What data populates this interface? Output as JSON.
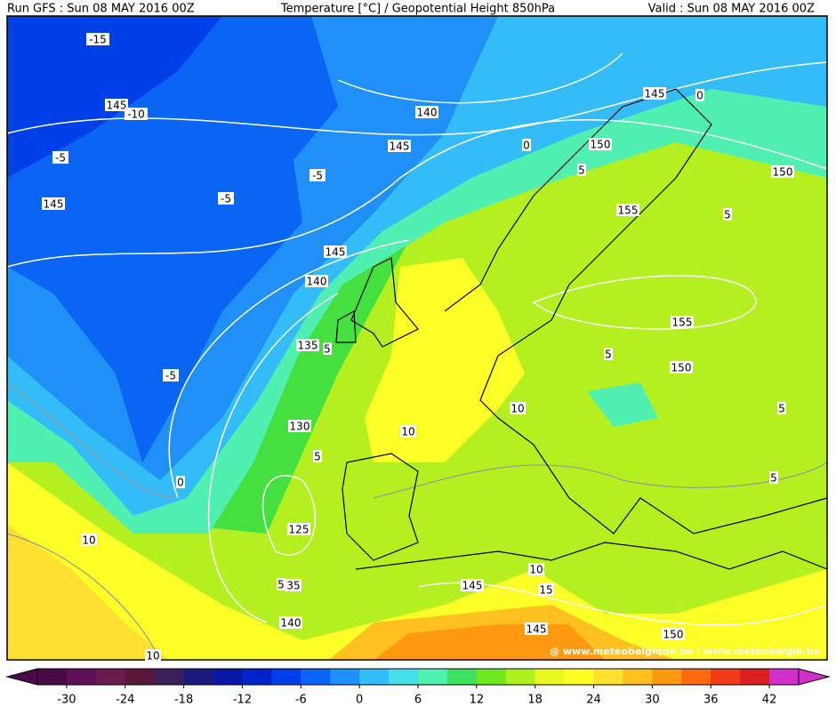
{
  "header": {
    "run": "Run GFS : Sun 08 MAY 2016 00Z",
    "title": "Temperature [°C] / Geopotential Height 850hPa",
    "valid": "Valid : Sun 08 MAY 2016 00Z"
  },
  "map": {
    "contour_labels": [
      "-15",
      "145",
      "-10",
      "-5",
      "145",
      "140",
      "145",
      "-5",
      "-5",
      "0",
      "150",
      "145",
      "0",
      "150",
      "5",
      "155",
      "5",
      "145",
      "140",
      "155",
      "135",
      "5",
      "5",
      "150",
      "-5",
      "10",
      "10",
      "5",
      "130",
      "5",
      "0",
      "5",
      "125",
      "10",
      "10",
      "15",
      "145",
      "5",
      "35",
      "140",
      "145",
      "150",
      "10"
    ],
    "credit": "@ www.meteobelgique.be / www.meteobelgie.be"
  },
  "colorbar": {
    "lim": [
      -33,
      45
    ],
    "ticks": [
      -30,
      -24,
      -18,
      -12,
      -6,
      0,
      6,
      12,
      18,
      24,
      30,
      36,
      42
    ],
    "colors": [
      "#4a0a48",
      "#5e1058",
      "#6a1a4e",
      "#5a1838",
      "#3a2058",
      "#1a1a78",
      "#0818a0",
      "#0024c8",
      "#0040e8",
      "#0a64f4",
      "#1e90f8",
      "#34bcf8",
      "#48e0e8",
      "#50f0b0",
      "#40e060",
      "#70e820",
      "#b0f020",
      "#e8f820",
      "#ffff28",
      "#ffe030",
      "#ffc020",
      "#ff9a10",
      "#ff6a10",
      "#f03a18",
      "#d82020",
      "#d030c8"
    ]
  }
}
